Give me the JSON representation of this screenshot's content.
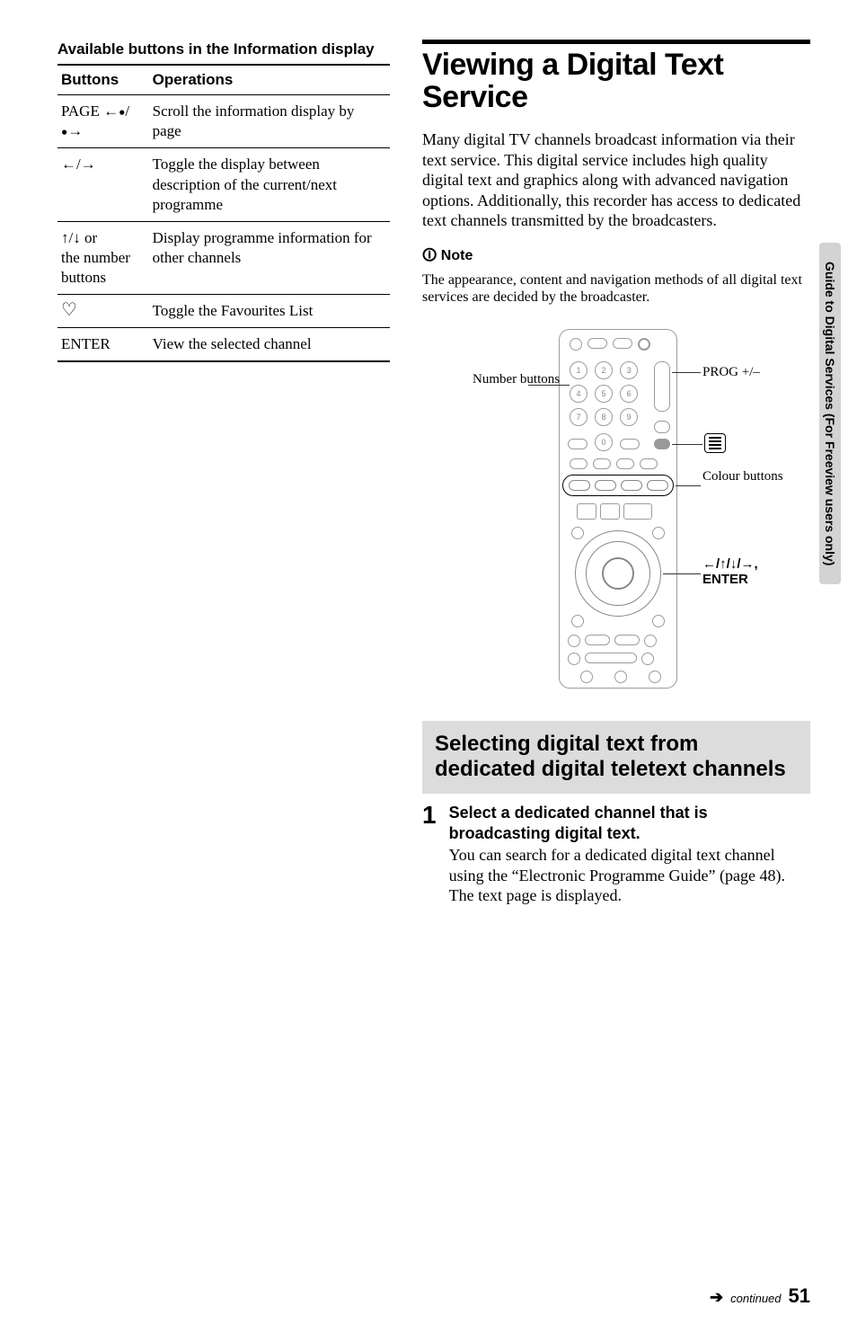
{
  "left": {
    "subhead": "Available buttons in the Information display",
    "table": {
      "head": [
        "Buttons",
        "Operations"
      ],
      "rows": [
        {
          "btn_html": "PAGE <span class='arrow-glyph'>&#8592;</span><span class='small-dot'>&#9679;</span>/<span class='small-dot'>&#9679;</span><span class='arrow-glyph'>&#8594;</span>",
          "op": "Scroll the information display by page"
        },
        {
          "btn_html": "<span class='arrow-glyph'>&#8592;</span>/<span class='arrow-glyph'>&#8594;</span>",
          "op": "Toggle the display between description of the current/next programme"
        },
        {
          "btn_html": "<span class='arrow-glyph'>&#8593;</span>/<span class='arrow-glyph'>&#8595;</span> or<br>the number buttons",
          "op": "Display programme information for other channels"
        },
        {
          "btn_html": "<span class='heart'>&#9825;</span>",
          "op": "Toggle the Favourites List"
        },
        {
          "btn_html": "ENTER",
          "op": "View the selected channel"
        }
      ]
    }
  },
  "right": {
    "title": "Viewing a Digital Text Service",
    "intro": "Many digital TV channels broadcast information via their text service. This digital service includes high quality digital text and graphics along with advanced navigation options. Additionally, this recorder has access to dedicated text channels transmitted by the broadcasters.",
    "note_head": "Note",
    "note_text": "The appearance, content and navigation methods of all digital text services are decided by the broadcaster.",
    "labels": {
      "number_buttons": "Number buttons",
      "prog": "PROG +/–",
      "text_icon": "≣",
      "colour": "Colour buttons",
      "dpad": "←/↑/↓/→, ENTER"
    },
    "panel_title": "Selecting digital text from dedicated digital teletext channels",
    "step_num": "1",
    "step_head": "Select a dedicated channel that is broadcasting digital text.",
    "step_body": "You can search for a dedicated digital text channel using the “Electronic Programme Guide” (page 48). The text page is displayed."
  },
  "side_tab": "Guide to Digital Services (For Freeview users only)",
  "footer": {
    "arrow": "➔",
    "cont": "continued",
    "page": "51"
  },
  "numbers": [
    "1",
    "2",
    "3",
    "4",
    "5",
    "6",
    "7",
    "8",
    "9",
    "0"
  ]
}
